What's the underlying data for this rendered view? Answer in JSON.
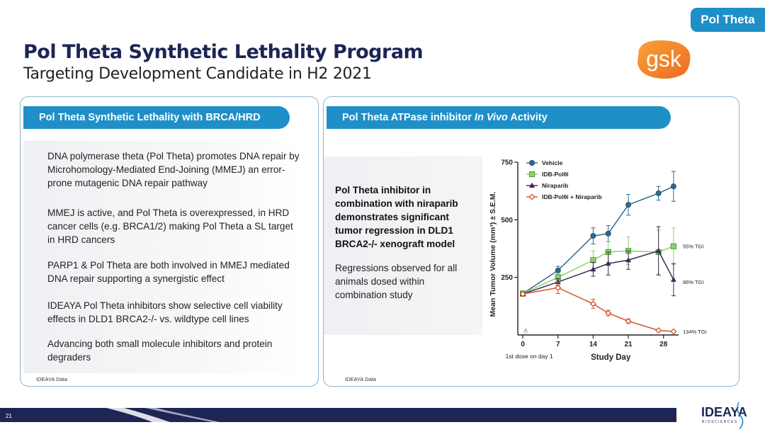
{
  "tag": "Pol Theta",
  "title": "Pol Theta Synthetic Lethality Program",
  "subtitle": "Targeting Development Candidate in H2 2021",
  "logos": {
    "partner": "gsk",
    "company": "IDEAYA",
    "company_sub": "BIOSCIENCES"
  },
  "left_panel": {
    "header": "Pol Theta Synthetic Lethality with BRCA/HRD",
    "bullets": [
      "DNA polymerase theta (Pol Theta) promotes DNA repair by Microhomology-Mediated End-Joining (MMEJ) an error-prone mutagenic DNA repair pathway",
      "MMEJ is active, and Pol Theta is overexpressed, in HRD cancer cells (e.g. BRCA1/2) making Pol Theta a SL target in HRD cancers",
      "PARP1 & Pol Theta are both involved in MMEJ mediated DNA repair supporting a synergistic effect",
      "IDEAYA Pol Theta inhibitors show selective cell viability effects in DLD1 BRCA2-/- vs. wildtype cell lines",
      "Advancing both small molecule inhibitors and protein degraders"
    ],
    "source": "IDEAYA Data"
  },
  "right_panel": {
    "header_pre": "Pol Theta ATPase inhibitor ",
    "header_em": "In Vivo",
    "header_post": " Activity",
    "bold_text": "Pol Theta inhibitor in combination with niraparib demonstrates significant tumor regression in DLD1 BRCA2-/- xenograft model",
    "plain_text": "Regressions observed for all animals dosed within combination study",
    "source": "IDEAYA Data"
  },
  "chart_data": {
    "type": "line",
    "xlabel": "Study Day",
    "ylabel": "Mean Tumor Volume (mm³) ± S.E.M.",
    "x_note": "1st dose on day 1",
    "xticks": [
      0,
      7,
      14,
      21,
      28
    ],
    "yticks": [
      250,
      500,
      750
    ],
    "xlim": [
      -1,
      31
    ],
    "ylim": [
      0,
      750
    ],
    "colors": {
      "vehicle": "#2e6a8e",
      "idb": "#8fd16a",
      "niraparib": "#3d2a55",
      "combo": "#d9542b"
    },
    "series": [
      {
        "name": "Vehicle",
        "marker": "circle",
        "x": [
          0,
          7,
          14,
          17,
          21,
          27,
          30
        ],
        "y": [
          180,
          280,
          430,
          440,
          565,
          615,
          645
        ],
        "err": [
          10,
          18,
          35,
          35,
          45,
          30,
          65
        ]
      },
      {
        "name": "IDB-Polθi",
        "marker": "square",
        "x": [
          0,
          7,
          14,
          17,
          21,
          27,
          30
        ],
        "y": [
          180,
          250,
          325,
          360,
          365,
          360,
          385
        ],
        "err": [
          10,
          18,
          40,
          45,
          60,
          95,
          80
        ]
      },
      {
        "name": "Niraparib",
        "marker": "triangle",
        "x": [
          0,
          7,
          14,
          17,
          21,
          27,
          30
        ],
        "y": [
          178,
          230,
          285,
          310,
          325,
          365,
          240
        ],
        "err": [
          10,
          15,
          30,
          50,
          40,
          105,
          70
        ]
      },
      {
        "name": "IDB-Polθi + Niraparib",
        "marker": "diamond",
        "x": [
          0,
          7,
          14,
          17,
          21,
          27,
          30
        ],
        "y": [
          178,
          205,
          135,
          95,
          60,
          20,
          15
        ],
        "err": [
          10,
          25,
          20,
          12,
          10,
          5,
          4
        ]
      }
    ],
    "annotations": [
      {
        "text": "55% TGI",
        "y": 385
      },
      {
        "text": "86% TGI",
        "y": 230
      },
      {
        "text": "134% TGI",
        "y": 15
      }
    ]
  },
  "footer": {
    "page_number": "21"
  }
}
